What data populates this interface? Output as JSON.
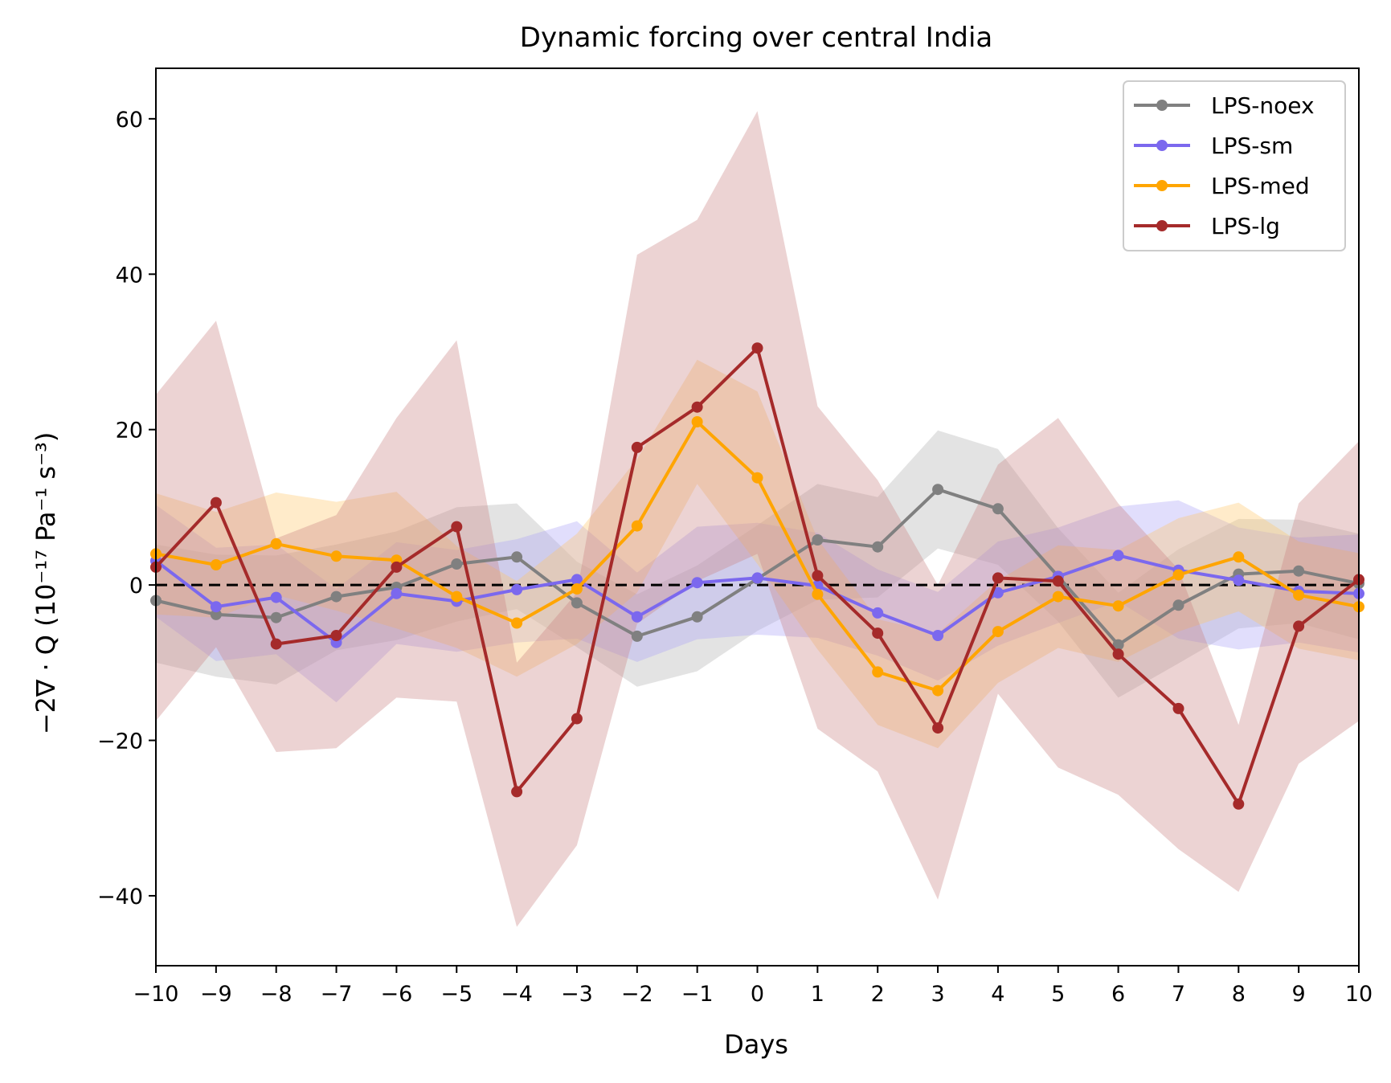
{
  "chart_data": {
    "type": "line",
    "title": "Dynamic forcing over central India",
    "xlabel": "Days",
    "ylabel": "−2∇ · Q (10⁻¹⁷ Pa⁻¹ s⁻³)",
    "xlim": [
      -10,
      10
    ],
    "ylim": [
      -49,
      66.5
    ],
    "x": [
      -10,
      -9,
      -8,
      -7,
      -6,
      -5,
      -4,
      -3,
      -2,
      -1,
      0,
      1,
      2,
      3,
      4,
      5,
      6,
      7,
      8,
      9,
      10
    ],
    "x_tick_labels": [
      "−10",
      "−9",
      "−8",
      "−7",
      "−6",
      "−5",
      "−4",
      "−3",
      "−2",
      "−1",
      "0",
      "1",
      "2",
      "3",
      "4",
      "5",
      "6",
      "7",
      "8",
      "9",
      "10"
    ],
    "y_ticks": [
      -40,
      -20,
      0,
      20,
      40,
      60
    ],
    "y_tick_labels": [
      "−40",
      "−20",
      "0",
      "20",
      "40",
      "60"
    ],
    "reference_line": 0,
    "legend_position": "top-right",
    "series": [
      {
        "name": "LPS-noex",
        "color": "#808080",
        "band_color": "#b0b0b0",
        "values": [
          -2,
          -3.8,
          -4.2,
          -1.5,
          -0.3,
          2.7,
          3.6,
          -2.3,
          -6.6,
          -4.1,
          0.8,
          5.8,
          4.9,
          12.3,
          9.8,
          1.1,
          -7.7,
          -2.6,
          1.4,
          1.8,
          0.2
        ],
        "upper": [
          5.2,
          3.9,
          3.8,
          5.2,
          6.9,
          10,
          10.5,
          3,
          -1.2,
          2.5,
          7.7,
          13,
          11.3,
          19.9,
          17.5,
          7.3,
          -1,
          4.6,
          8.5,
          8.4,
          6.6
        ],
        "lower": [
          -10,
          -11.8,
          -12.8,
          -8.4,
          -7.1,
          -4.7,
          -3.1,
          -8,
          -13.1,
          -11.1,
          -5.9,
          -1.9,
          -1.6,
          4.7,
          2.6,
          -4.7,
          -14.5,
          -10.1,
          -5.6,
          -4.9,
          -7
        ]
      },
      {
        "name": "LPS-sm",
        "color": "#7b68ee",
        "band_color": "#a9a0f7",
        "values": [
          3.1,
          -2.8,
          -1.6,
          -7.4,
          -1.1,
          -2.1,
          -0.6,
          0.7,
          -4.1,
          0.3,
          0.9,
          -0.1,
          -3.6,
          -6.5,
          -1,
          1.1,
          3.8,
          1.9,
          0.6,
          -0.8,
          -1.1
        ],
        "upper": [
          10.3,
          4.8,
          5.2,
          -0.5,
          5.5,
          4.5,
          5.9,
          8.2,
          1.6,
          7.5,
          8,
          6.7,
          2,
          -0.9,
          5.6,
          7.4,
          10.1,
          10.9,
          7.4,
          6.1,
          6.5
        ],
        "lower": [
          -4.1,
          -9.8,
          -8.9,
          -15.1,
          -7.6,
          -8.6,
          -7.4,
          -6.9,
          -9.9,
          -7,
          -6.4,
          -6.8,
          -9.1,
          -12.3,
          -7.8,
          -4.9,
          -2.1,
          -6.9,
          -8.3,
          -7.4,
          -8.7
        ]
      },
      {
        "name": "LPS-med",
        "color": "#ffa500",
        "band_color": "#ffc766",
        "values": [
          4,
          2.6,
          5.3,
          3.7,
          3.2,
          -1.5,
          -4.9,
          -0.5,
          7.6,
          21,
          13.8,
          -1.2,
          -11.2,
          -13.6,
          -6,
          -1.5,
          -2.7,
          1.3,
          3.6,
          -1.3,
          -2.8
        ],
        "upper": [
          11.8,
          9.4,
          11.9,
          10.7,
          12,
          5,
          0.5,
          6.6,
          16.2,
          29,
          24.9,
          5.9,
          -4.4,
          -6.2,
          0.6,
          5.1,
          4.5,
          8.6,
          10.6,
          5.6,
          4.1
        ],
        "lower": [
          -3.8,
          -4.2,
          -1.3,
          -3.3,
          -5.6,
          -8.1,
          -11.8,
          -7.6,
          -1,
          13,
          2.7,
          -8.3,
          -18,
          -21,
          -12.6,
          -8.1,
          -9.9,
          -6,
          -3.4,
          -8.2,
          -9.7
        ]
      },
      {
        "name": "LPS-lg",
        "color": "#a52a2a",
        "band_color": "#c98282",
        "values": [
          2.3,
          10.6,
          -7.6,
          -6.5,
          2.3,
          7.5,
          -26.6,
          -17.2,
          17.7,
          22.9,
          30.5,
          1.2,
          -6.2,
          -18.4,
          0.9,
          0.5,
          -8.9,
          -15.9,
          -28.2,
          -5.3,
          0.7
        ],
        "upper": [
          24.5,
          34,
          6,
          9,
          21.5,
          31.5,
          -10,
          -1,
          42.5,
          47,
          61,
          23,
          13.5,
          0,
          15.5,
          21.5,
          10.5,
          2,
          -18,
          10.5,
          18.5
        ],
        "lower": [
          -17.5,
          -8,
          -21.5,
          -21,
          -14.5,
          -15,
          -44,
          -33.5,
          -5,
          0.5,
          4,
          -18.5,
          -24,
          -40.5,
          -14,
          -23.5,
          -27,
          -34,
          -39.5,
          -23,
          -17.5
        ]
      }
    ]
  }
}
